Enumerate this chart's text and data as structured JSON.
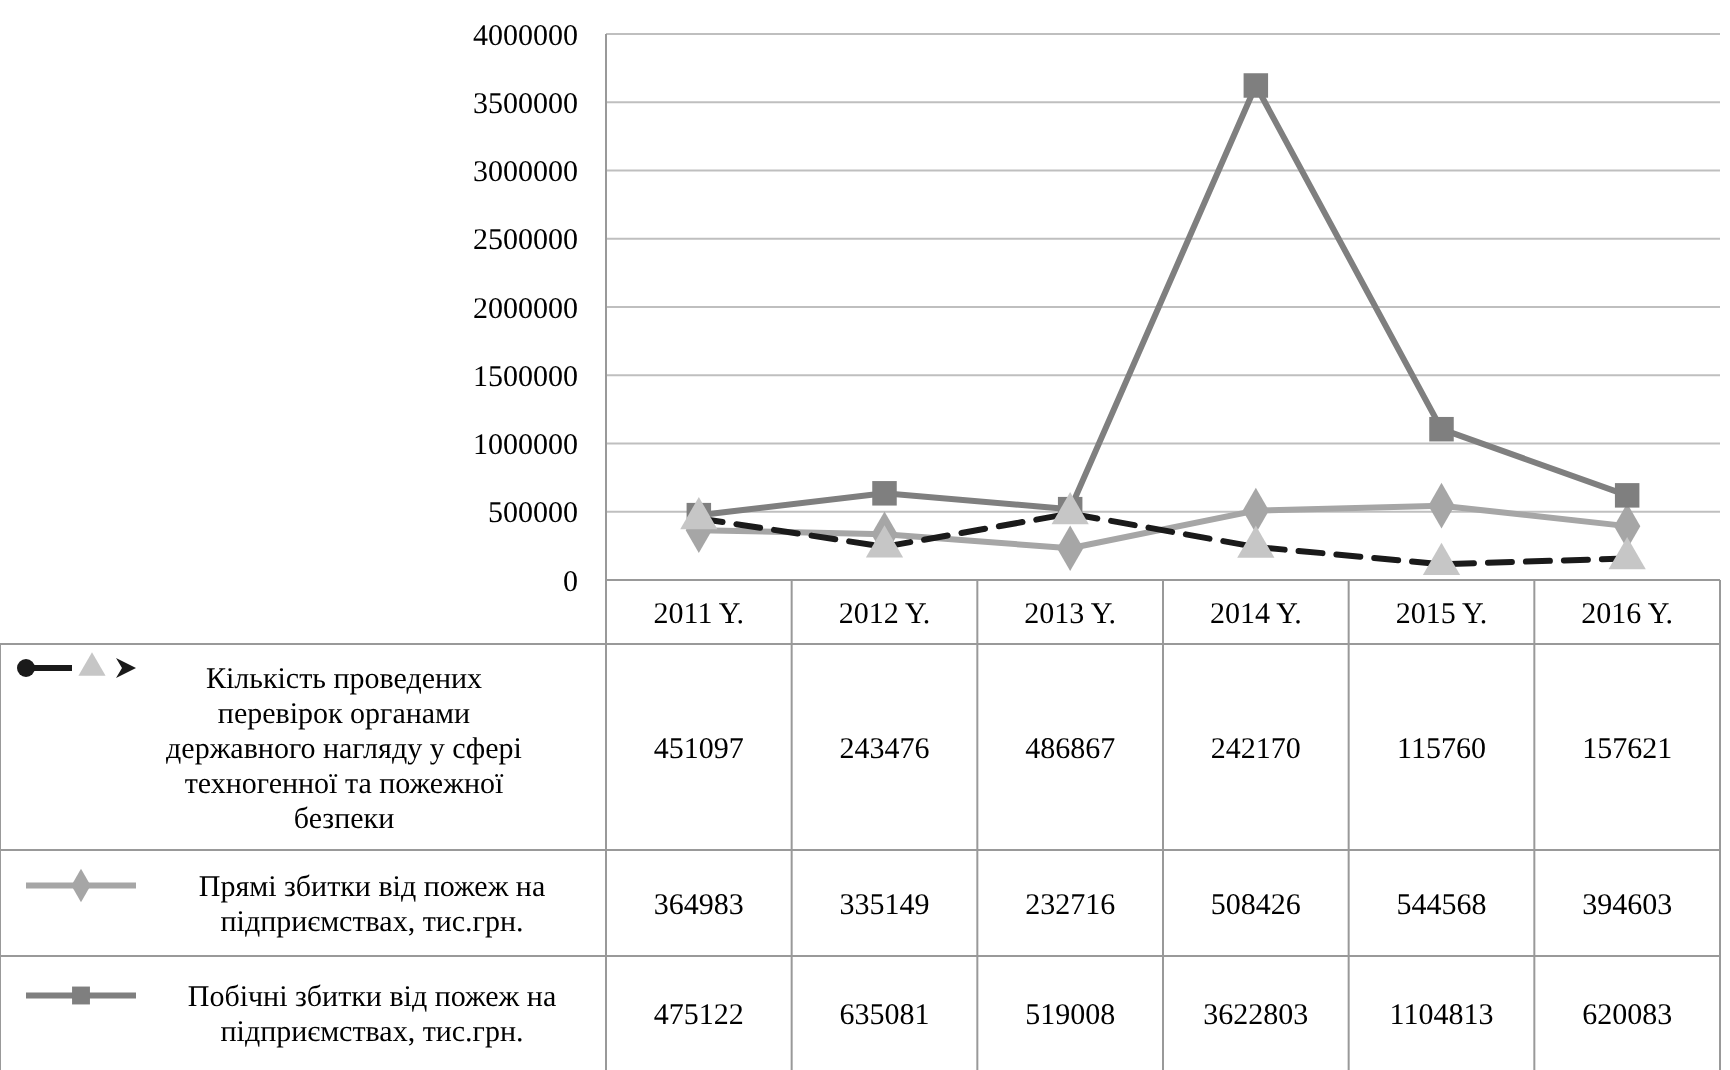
{
  "chart_data": {
    "type": "line",
    "categories": [
      "2011 Y.",
      "2012 Y.",
      "2013 Y.",
      "2014 Y.",
      "2015 Y.",
      "2016 Y."
    ],
    "series": [
      {
        "name": "Кількість проведених перевірок органами державного нагляду у сфері техногенної та пожежної безпеки",
        "color": "#1a1a1a",
        "values": [
          451097,
          243476,
          486867,
          242170,
          115760,
          157621
        ],
        "line_style": "dashed",
        "marker": "triangle"
      },
      {
        "name": "Прямі збитки від пожеж на підприємствах, тис.грн.",
        "color": "#a6a6a6",
        "values": [
          364983,
          335149,
          232716,
          508426,
          544568,
          394603
        ],
        "line_style": "solid",
        "marker": "diamond"
      },
      {
        "name": "Побічні збитки від пожеж на підприємствах, тис.грн.",
        "color": "#7f7f7f",
        "values": [
          475122,
          635081,
          519008,
          3622803,
          1104813,
          620083
        ],
        "line_style": "solid",
        "marker": "square"
      }
    ],
    "ylim": [
      0,
      4000000
    ],
    "yticks": [
      0,
      500000,
      1000000,
      1500000,
      2000000,
      2500000,
      3000000,
      3500000,
      4000000
    ],
    "grid": "y",
    "legend": "bottom",
    "data_labels": true
  }
}
